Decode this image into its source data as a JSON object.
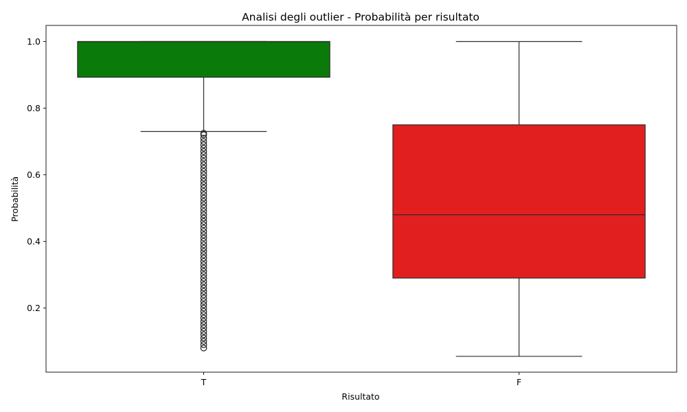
{
  "chart_data": {
    "type": "box",
    "title": "Analisi degli outlier - Probabilità per risultato",
    "xlabel": "Risultato",
    "ylabel": "Probabilità",
    "ylim": [
      0.0075,
      1.0485
    ],
    "yticks": [
      0.2,
      0.4,
      0.6,
      0.8,
      1.0
    ],
    "ytick_labels": [
      "0.2",
      "0.4",
      "0.6",
      "0.8",
      "1.0"
    ],
    "grid": false,
    "categories": [
      "T",
      "F"
    ],
    "boxes": [
      {
        "category": "T",
        "color": "#0a7a0a",
        "whisker_low": 0.73,
        "q1": 0.893,
        "median": 1.0,
        "q3": 1.0,
        "whisker_high": 1.0,
        "outliers": [
          0.08,
          0.09,
          0.1,
          0.11,
          0.12,
          0.13,
          0.14,
          0.15,
          0.16,
          0.17,
          0.18,
          0.19,
          0.2,
          0.21,
          0.22,
          0.23,
          0.24,
          0.25,
          0.26,
          0.27,
          0.28,
          0.29,
          0.3,
          0.31,
          0.32,
          0.33,
          0.34,
          0.35,
          0.36,
          0.37,
          0.38,
          0.39,
          0.4,
          0.41,
          0.42,
          0.43,
          0.44,
          0.45,
          0.46,
          0.47,
          0.48,
          0.49,
          0.5,
          0.51,
          0.52,
          0.53,
          0.54,
          0.55,
          0.56,
          0.57,
          0.58,
          0.59,
          0.6,
          0.61,
          0.62,
          0.63,
          0.64,
          0.65,
          0.66,
          0.67,
          0.68,
          0.69,
          0.7,
          0.71,
          0.72,
          0.725
        ]
      },
      {
        "category": "F",
        "color": "#e11f1f",
        "whisker_low": 0.055,
        "q1": 0.29,
        "median": 0.48,
        "q3": 0.75,
        "whisker_high": 1.0,
        "outliers": []
      }
    ]
  }
}
